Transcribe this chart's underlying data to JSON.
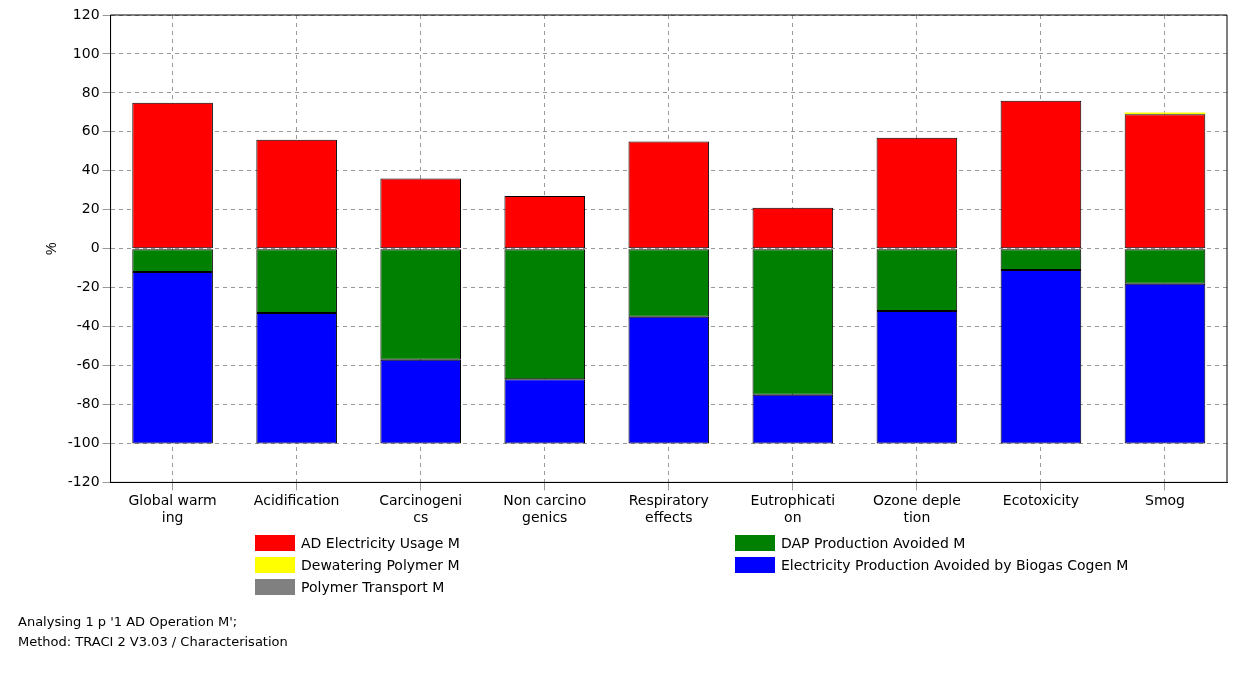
{
  "chart_data": {
    "type": "bar",
    "stacked": true,
    "ylabel": "%",
    "categories": [
      "Global warm\ning",
      "Acidification",
      "Carcinogeni\ncs",
      "Non carcino\ngenics",
      "Respiratory\neffects",
      "Eutrophicati\non",
      "Ozone deple\ntion",
      "Ecotoxicity",
      "Smog"
    ],
    "series": [
      {
        "name": "AD Electricity Usage M",
        "color": "#ff0000",
        "values": [
          75,
          56,
          36,
          27,
          55,
          21,
          57,
          76,
          69
        ]
      },
      {
        "name": "Dewatering Polymer M",
        "color": "#ffff00",
        "values": [
          0,
          0,
          0,
          0,
          0,
          0,
          0,
          0,
          1
        ]
      },
      {
        "name": "Polymer Transport M",
        "color": "#808080",
        "values": [
          0,
          0,
          0,
          0,
          0,
          0,
          0,
          0,
          0
        ]
      },
      {
        "name": "DAP Production Avoided M",
        "color": "#008000",
        "values": [
          -12,
          -33,
          -57,
          -67,
          -35,
          -75,
          -32,
          -11,
          -18
        ]
      },
      {
        "name": "Electricity Production Avoided by Biogas Cogen M",
        "color": "#0000ff",
        "values": [
          -88,
          -67,
          -43,
          -33,
          -65,
          -25,
          -68,
          -89,
          -82
        ]
      }
    ],
    "ylim": [
      -120,
      120
    ],
    "yticks": [
      -120,
      -100,
      -80,
      -60,
      -40,
      -20,
      0,
      20,
      40,
      60,
      80,
      100,
      120
    ],
    "grid": true,
    "legend": "bottom",
    "annotations": [
      "Analysing 1 p '1 AD Operation M';",
      "Method: TRACI 2 V3.03 / Characterisation"
    ]
  }
}
